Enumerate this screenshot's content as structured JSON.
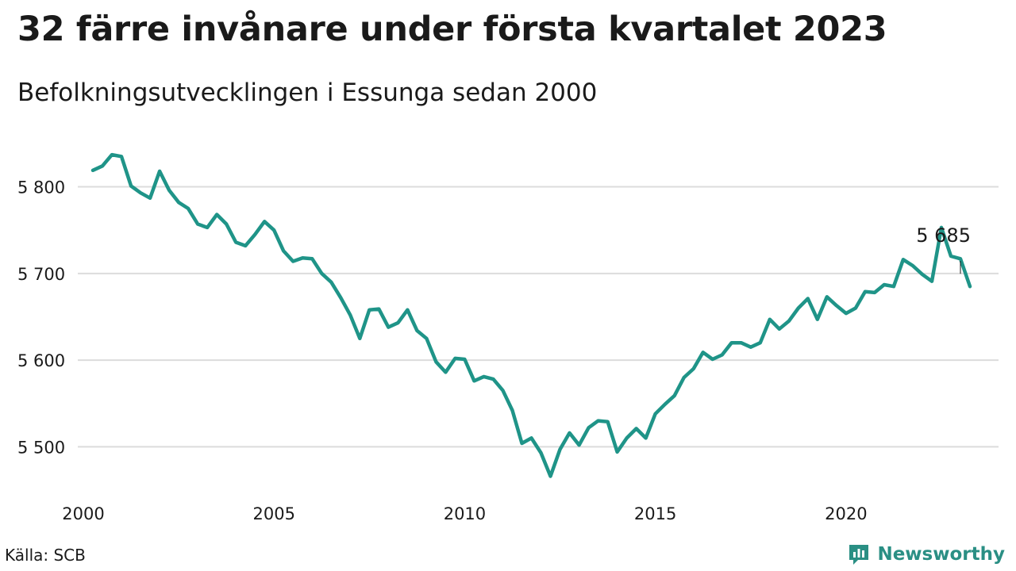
{
  "header": {
    "title": "32 färre invånare under första kvartalet 2023",
    "subtitle": "Befolkningsutvecklingen i Essunga sedan 2000"
  },
  "footer": {
    "source": "Källa: SCB",
    "brand": "Newsworthy",
    "brand_icon": "newsworthy-logo-icon"
  },
  "colors": {
    "line": "#1f9488",
    "grid": "#dcdcdc",
    "text": "#1a1a1a",
    "brand": "#2a8f84"
  },
  "chart_data": {
    "type": "line",
    "title": "32 färre invånare under första kvartalet 2023",
    "subtitle": "Befolkningsutvecklingen i Essunga sedan 2000",
    "xlabel": "",
    "ylabel": "",
    "grid": "horizontal",
    "xlim": [
      2000,
      2023.25
    ],
    "ylim": [
      5450,
      5860
    ],
    "xticks": [
      2000,
      2005,
      2010,
      2015,
      2020
    ],
    "xtick_labels": [
      "2000",
      "2005",
      "2010",
      "2015",
      "2020"
    ],
    "yticks": [
      5500,
      5600,
      5700,
      5800
    ],
    "ytick_labels": [
      "5 500",
      "5 600",
      "5 700",
      "5 800"
    ],
    "annotation": {
      "text": "5 685",
      "x": 2023.0,
      "y": 5685
    },
    "series": [
      {
        "x": [
          2000.25,
          2000.5,
          2000.75,
          2001.0,
          2001.25,
          2001.5,
          2001.75,
          2002.0,
          2002.25,
          2002.5,
          2002.75,
          2003.0,
          2003.25,
          2003.5,
          2003.75,
          2004.0,
          2004.25,
          2004.5,
          2004.75,
          2005.0,
          2005.25,
          2005.5,
          2005.75,
          2006.0,
          2006.25,
          2006.5,
          2006.75,
          2007.0,
          2007.25,
          2007.5,
          2007.75,
          2008.0,
          2008.25,
          2008.5,
          2008.75,
          2009.0,
          2009.25,
          2009.5,
          2009.75,
          2010.0,
          2010.25,
          2010.5,
          2010.75,
          2011.0,
          2011.25,
          2011.5,
          2011.75,
          2012.0,
          2012.25,
          2012.5,
          2012.75,
          2013.0,
          2013.25,
          2013.5,
          2013.75,
          2014.0,
          2014.25,
          2014.5,
          2014.75,
          2015.0,
          2015.25,
          2015.5,
          2015.75,
          2016.0,
          2016.25,
          2016.5,
          2016.75,
          2017.0,
          2017.25,
          2017.5,
          2017.75,
          2018.0,
          2018.25,
          2018.5,
          2018.75,
          2019.0,
          2019.25,
          2019.5,
          2019.75,
          2020.0,
          2020.25,
          2020.5,
          2020.75,
          2021.0,
          2021.25,
          2021.5,
          2021.75,
          2022.0,
          2022.25,
          2022.5,
          2022.75,
          2023.0,
          2023.25
        ],
        "values": [
          5819,
          5824,
          5837,
          5835,
          5801,
          5793,
          5787,
          5818,
          5796,
          5782,
          5775,
          5757,
          5753,
          5768,
          5757,
          5736,
          5732,
          5745,
          5760,
          5750,
          5726,
          5714,
          5718,
          5717,
          5700,
          5690,
          5672,
          5652,
          5625,
          5658,
          5659,
          5638,
          5643,
          5658,
          5634,
          5625,
          5598,
          5586,
          5602,
          5601,
          5576,
          5581,
          5578,
          5565,
          5542,
          5504,
          5510,
          5493,
          5466,
          5497,
          5516,
          5502,
          5522,
          5530,
          5529,
          5494,
          5510,
          5521,
          5510,
          5538,
          5549,
          5559,
          5580,
          5590,
          5609,
          5601,
          5606,
          5620,
          5620,
          5615,
          5620,
          5647,
          5636,
          5645,
          5660,
          5671,
          5647,
          5673,
          5663,
          5654,
          5660,
          5679,
          5678,
          5687,
          5685,
          5716,
          5709,
          5699,
          5691,
          5753,
          5720,
          5717,
          5685
        ]
      }
    ]
  }
}
